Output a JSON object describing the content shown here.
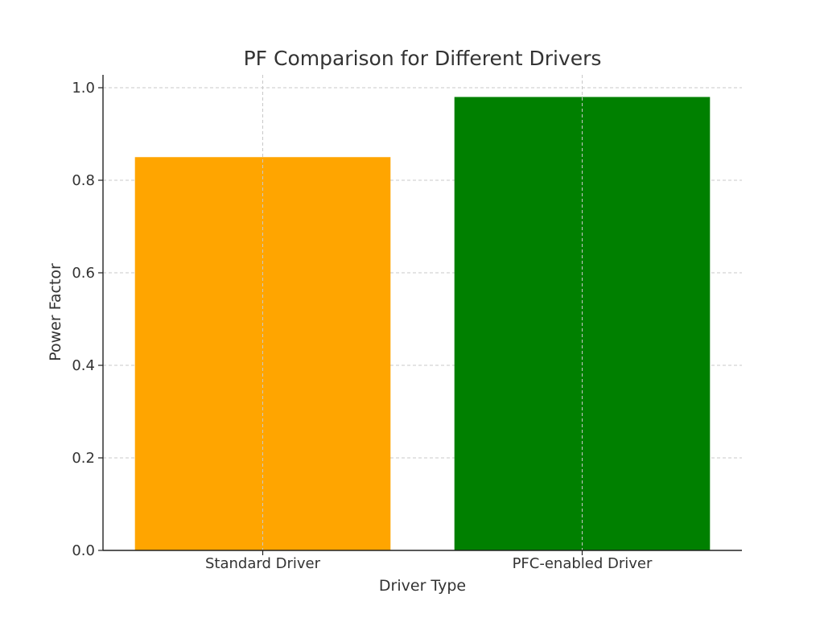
{
  "chart_data": {
    "type": "bar",
    "title": "PF Comparison for Different Drivers",
    "xlabel": "Driver Type",
    "ylabel": "Power Factor",
    "categories": [
      "Standard Driver",
      "PFC-enabled Driver"
    ],
    "values": [
      0.85,
      0.98
    ],
    "colors": [
      "#ffa500",
      "#008000"
    ],
    "ylim": [
      0,
      1.0
    ],
    "yticks": [
      0.0,
      0.2,
      0.4,
      0.6,
      0.8,
      1.0
    ],
    "ytick_labels": [
      "0.0",
      "0.2",
      "0.4",
      "0.6",
      "0.8",
      "1.0"
    ],
    "grid": true
  }
}
